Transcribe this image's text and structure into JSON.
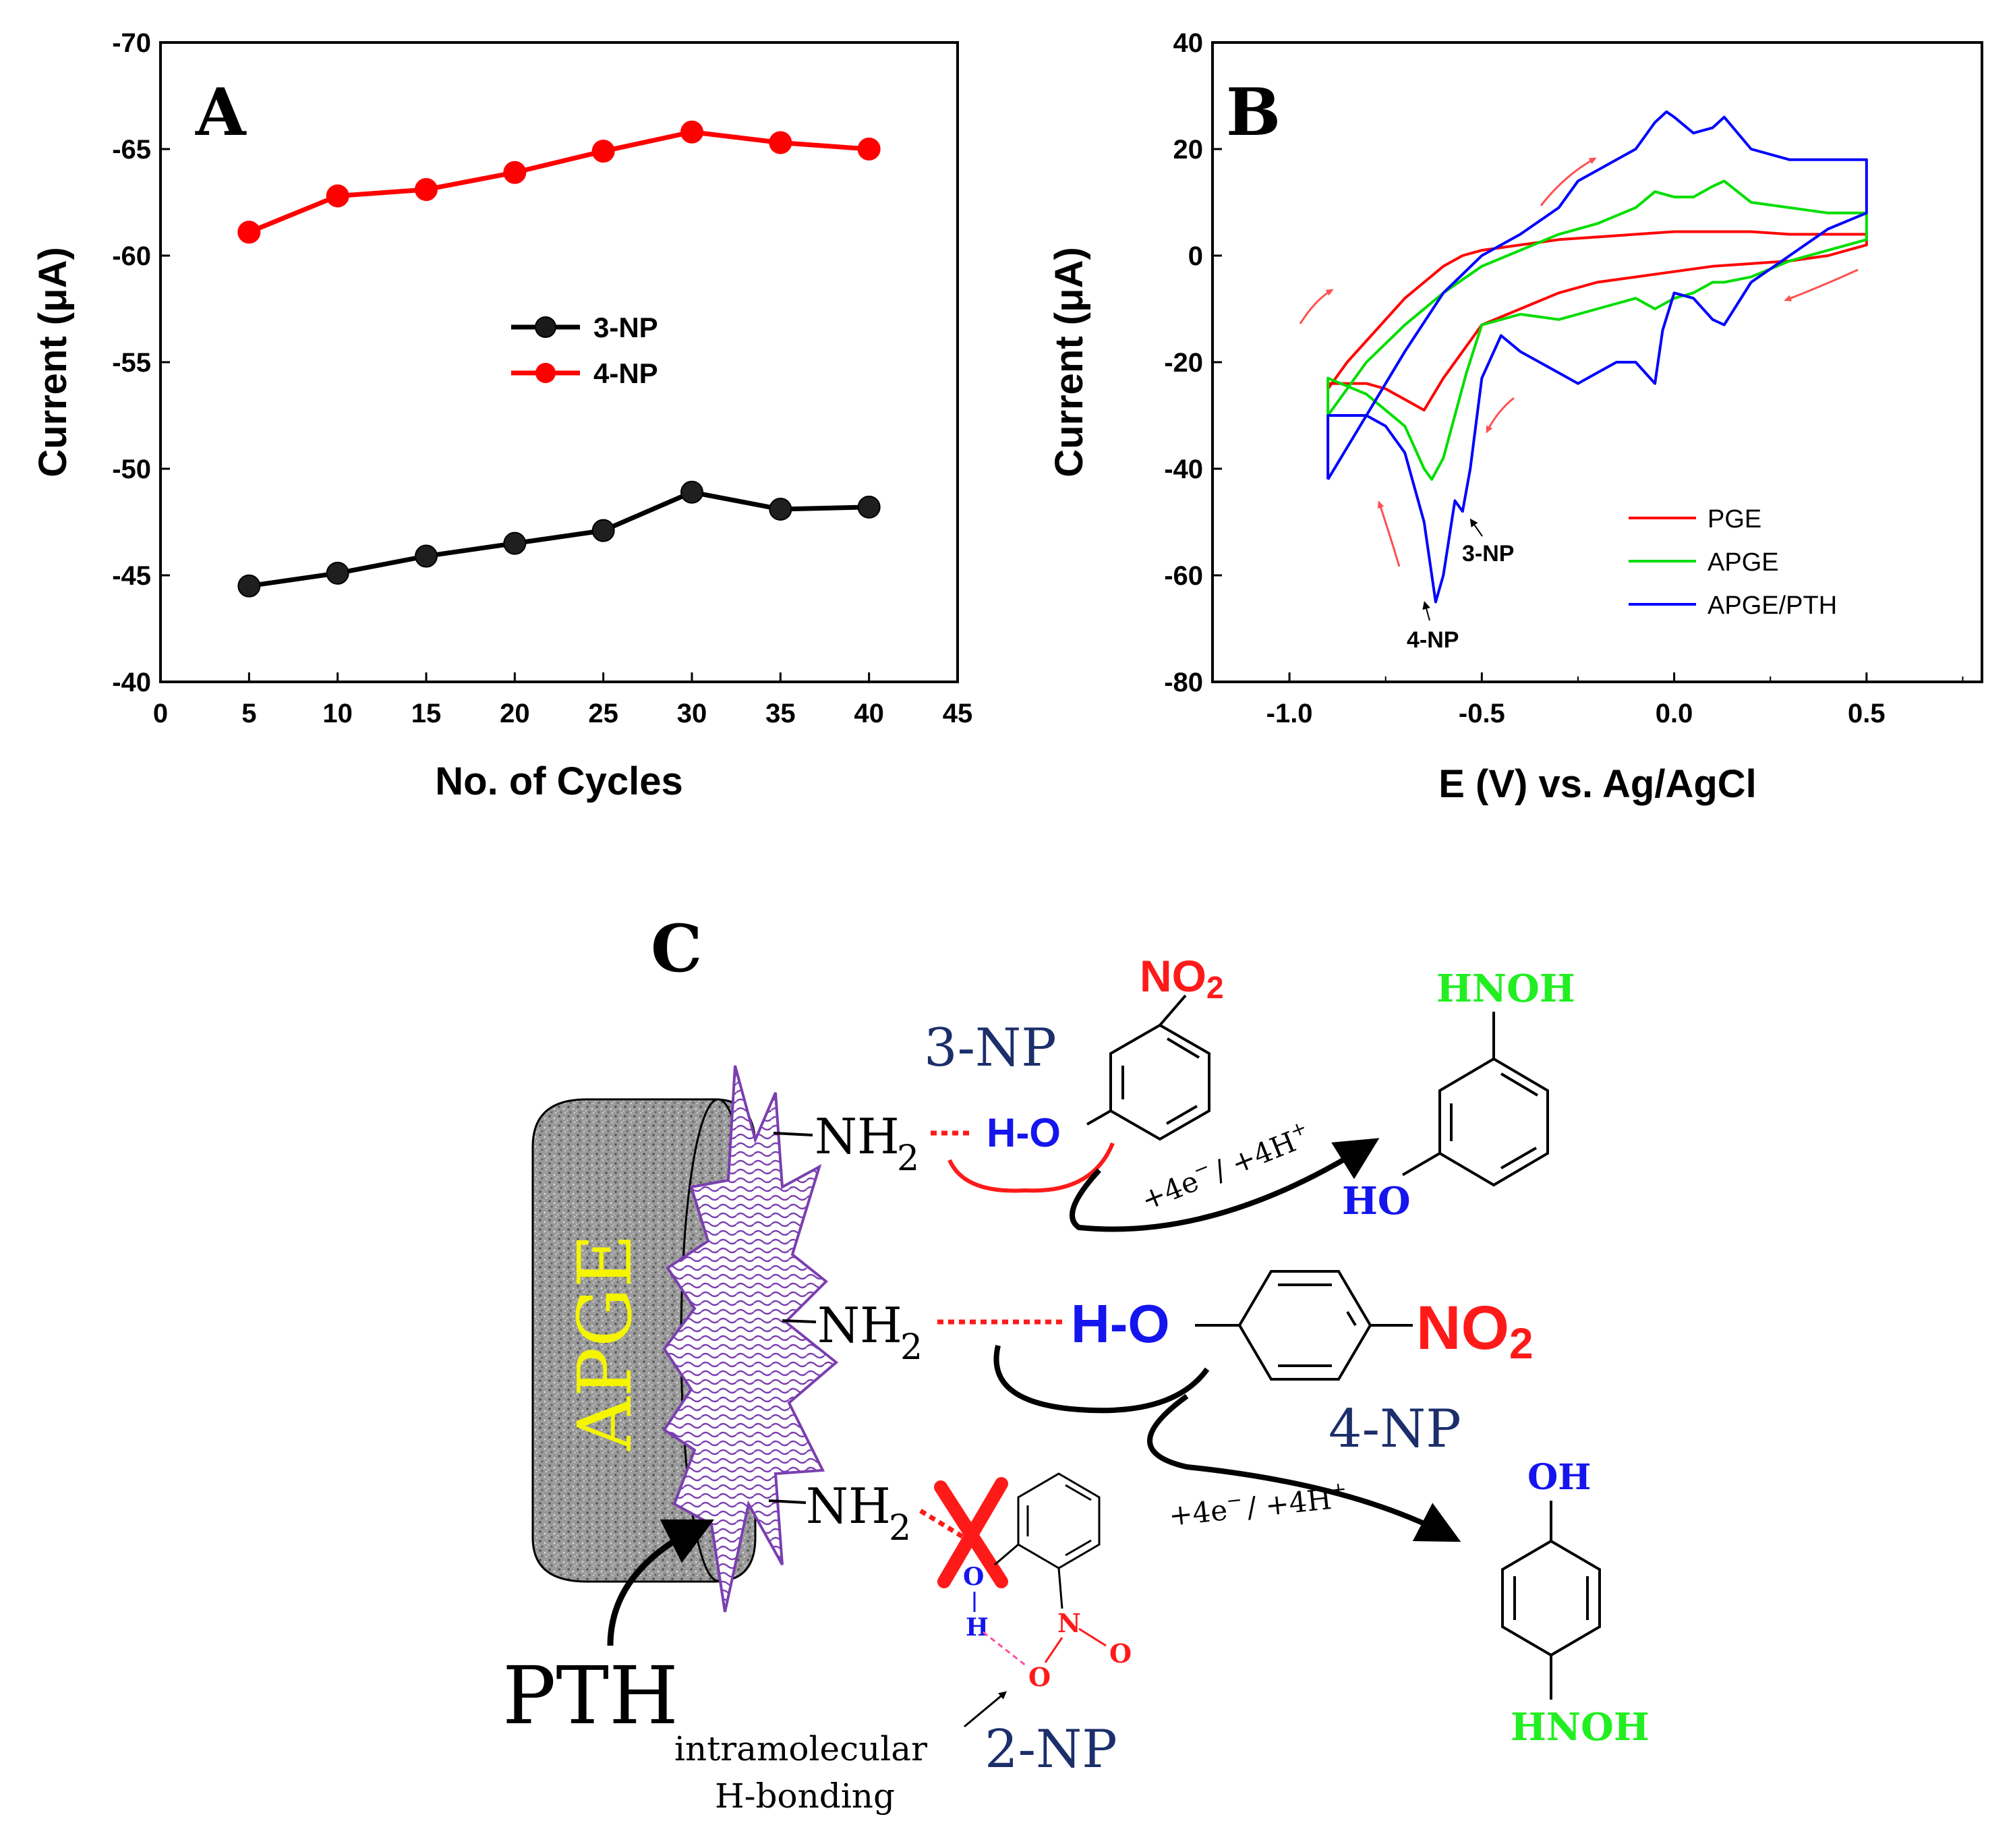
{
  "chart_data": [
    {
      "type": "line",
      "panel": "A",
      "xlabel": "No. of Cycles",
      "ylabel": "Current (μA)",
      "xlim": [
        0,
        45
      ],
      "ylim": [
        -40,
        -70
      ],
      "xticks": [
        "0",
        "5",
        "10",
        "15",
        "20",
        "25",
        "30",
        "35",
        "40",
        "45"
      ],
      "yticks": [
        "-70",
        "-65",
        "-60",
        "-55",
        "-50",
        "-45",
        "-40"
      ],
      "legend_position": "center",
      "x": [
        5,
        10,
        15,
        20,
        25,
        30,
        35,
        40
      ],
      "series": [
        {
          "name": "3-NP",
          "color": "#000000",
          "values": [
            -44.5,
            -45.1,
            -45.9,
            -46.5,
            -47.1,
            -48.9,
            -48.1,
            -48.2
          ]
        },
        {
          "name": "4-NP",
          "color": "#ff0000",
          "values": [
            -61.1,
            -62.8,
            -63.1,
            -63.9,
            -64.9,
            -65.8,
            -65.3,
            -65.0
          ]
        }
      ]
    },
    {
      "type": "line",
      "panel": "B",
      "xlabel": "E (V) vs. Ag/AgCl",
      "ylabel": "Current (μA)",
      "xlim": [
        -1.2,
        0.8
      ],
      "ylim": [
        -80,
        40
      ],
      "xticks": [
        "-1.0",
        "-0.5",
        "0.0",
        "0.5"
      ],
      "yticks": [
        "40",
        "20",
        "0",
        "-20",
        "-40",
        "-60",
        "-80"
      ],
      "legend_position": "bottom-right",
      "annotations": [
        "3-NP",
        "4-NP"
      ],
      "series": [
        {
          "name": "PGE",
          "color": "#ff0000",
          "x": [
            -0.9,
            -0.85,
            -0.8,
            -0.75,
            -0.7,
            -0.65,
            -0.6,
            -0.55,
            -0.5,
            -0.4,
            -0.3,
            -0.2,
            -0.1,
            0.0,
            0.1,
            0.2,
            0.3,
            0.4,
            0.5,
            0.5,
            0.4,
            0.3,
            0.2,
            0.1,
            0.0,
            -0.1,
            -0.2,
            -0.3,
            -0.4,
            -0.5,
            -0.55,
            -0.6,
            -0.65,
            -0.7,
            -0.75,
            -0.8,
            -0.85,
            -0.9,
            -0.9
          ],
          "y": [
            -25,
            -20,
            -16,
            -12,
            -8,
            -5,
            -2,
            0,
            1,
            2,
            3,
            3.5,
            4,
            4.5,
            4.5,
            4.5,
            4,
            4,
            4,
            2,
            0,
            -1,
            -1.5,
            -2,
            -3,
            -4,
            -5,
            -7,
            -10,
            -13,
            -18,
            -23,
            -29,
            -27,
            -25,
            -24,
            -24,
            -24,
            -25
          ]
        },
        {
          "name": "APGE",
          "color": "#00dd00",
          "x": [
            -0.9,
            -0.8,
            -0.7,
            -0.6,
            -0.5,
            -0.4,
            -0.3,
            -0.2,
            -0.1,
            -0.05,
            0.0,
            0.05,
            0.1,
            0.13,
            0.2,
            0.3,
            0.4,
            0.5,
            0.5,
            0.4,
            0.3,
            0.2,
            0.13,
            0.1,
            0.05,
            0.0,
            -0.05,
            -0.1,
            -0.2,
            -0.3,
            -0.4,
            -0.5,
            -0.54,
            -0.57,
            -0.6,
            -0.63,
            -0.65,
            -0.7,
            -0.8,
            -0.9,
            -0.9
          ],
          "y": [
            -30,
            -20,
            -13,
            -7,
            -2,
            1,
            4,
            6,
            9,
            12,
            11,
            11,
            13,
            14,
            10,
            9,
            8,
            8,
            3,
            1,
            -1,
            -4,
            -5,
            -5,
            -7,
            -8,
            -10,
            -8,
            -10,
            -12,
            -11,
            -13,
            -22,
            -30,
            -38,
            -42,
            -40,
            -32,
            -26,
            -23,
            -30
          ]
        },
        {
          "name": "APGE/PTH",
          "color": "#0000ff",
          "x": [
            -0.9,
            -0.8,
            -0.7,
            -0.6,
            -0.5,
            -0.4,
            -0.3,
            -0.25,
            -0.2,
            -0.1,
            -0.05,
            -0.02,
            0.0,
            0.05,
            0.1,
            0.13,
            0.2,
            0.3,
            0.4,
            0.5,
            0.5,
            0.4,
            0.3,
            0.2,
            0.13,
            0.1,
            0.05,
            0.0,
            -0.03,
            -0.05,
            -0.1,
            -0.15,
            -0.2,
            -0.25,
            -0.3,
            -0.4,
            -0.45,
            -0.5,
            -0.53,
            -0.55,
            -0.57,
            -0.6,
            -0.62,
            -0.65,
            -0.7,
            -0.75,
            -0.8,
            -0.9,
            -0.9
          ],
          "y": [
            -42,
            -30,
            -18,
            -7,
            0,
            4,
            9,
            14,
            16,
            20,
            25,
            27,
            26,
            23,
            24,
            26,
            20,
            18,
            18,
            18,
            8,
            5,
            0,
            -5,
            -13,
            -12,
            -8,
            -7,
            -14,
            -24,
            -20,
            -20,
            -22,
            -24,
            -22,
            -18,
            -15,
            -23,
            -40,
            -48,
            -46,
            -60,
            -65,
            -50,
            -37,
            -32,
            -30,
            -30,
            -42
          ]
        }
      ]
    }
  ],
  "panelC": {
    "label": "C",
    "electrode": "APGE",
    "pth": "PTH",
    "nh": "NH",
    "sub2": "2",
    "np3": "3-NP",
    "np4": "4-NP",
    "np2": "2-NP",
    "ho": "H-O",
    "no2_main": "NO",
    "hnoh": "HNOH",
    "ho_prod": "HO",
    "oh_prod": "OH",
    "electrons": "+4e",
    "sup_minus": "−",
    "protons": "/ +4H",
    "sup_plus": "+",
    "o2np": "O",
    "h2np": "H",
    "n2np": "N",
    "o2np_b": "O",
    "o2np_c": "O",
    "intra_1": "intramolecular",
    "intra_2": "H-bonding",
    "colors": {
      "red": "#ff1a1a",
      "blue": "#1515ee",
      "green": "#22ee22",
      "yellow": "#f5f500",
      "navy": "#1c2f6b",
      "purple": "#7a3fb0"
    }
  }
}
